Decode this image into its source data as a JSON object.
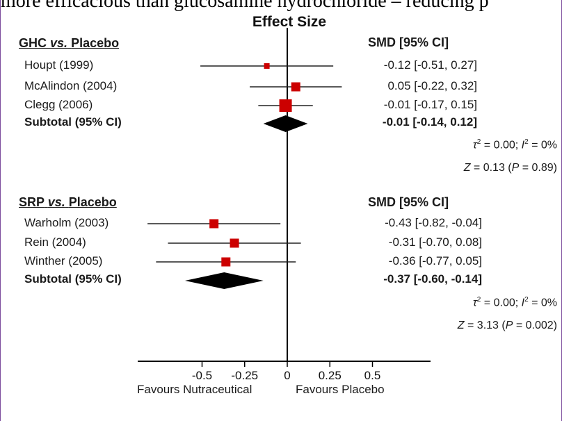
{
  "header_text": "more efficacious than glucosamine hydrochloride – reducing p",
  "chart_data": {
    "type": "forest",
    "title": "Effect Size",
    "x_range": [
      -1.0,
      0.8
    ],
    "ticks": [
      -0.5,
      -0.25,
      0,
      0.25,
      0.5
    ],
    "tick_labels": [
      "-0.5",
      "-0.25",
      "0",
      "0.25",
      "0.5"
    ],
    "favours_left": "Favours Nutraceutical",
    "favours_right": "Favours Placebo",
    "colors": {
      "marker": "#cc0000",
      "diamond": "#000000"
    },
    "groups": [
      {
        "title_prefix": "GHC",
        "title_vs": "vs.",
        "title_suffix": "Placebo",
        "column_header": "SMD [95% CI]",
        "studies": [
          {
            "name": "Houpt (1999)",
            "smd": -0.12,
            "lo": -0.51,
            "hi": 0.27,
            "text": "-0.12 [-0.51, 0.27]",
            "size": "small"
          },
          {
            "name": "McAlindon (2004)",
            "smd": 0.05,
            "lo": -0.22,
            "hi": 0.32,
            "text": "0.05 [-0.22, 0.32]",
            "size": "medium"
          },
          {
            "name": "Clegg (2006)",
            "smd": -0.01,
            "lo": -0.17,
            "hi": 0.15,
            "text": "-0.01 [-0.17, 0.15]",
            "size": "large"
          }
        ],
        "subtotal": {
          "label": "Subtotal (95% CI)",
          "smd": -0.01,
          "lo": -0.14,
          "hi": 0.12,
          "text": "-0.01 [-0.14, 0.12]"
        },
        "heterogeneity": {
          "tau": "τ",
          "tau_eq": " = 0.00; ",
          "i2": "I",
          "i2_eq": " = 0%"
        },
        "z_test": {
          "z": "Z",
          "z_eq": " = 0.13 (",
          "p": "P",
          "p_eq": " = 0.89)"
        }
      },
      {
        "title_prefix": "SRP",
        "title_vs": "vs.",
        "title_suffix": "Placebo",
        "column_header": "SMD [95% CI]",
        "studies": [
          {
            "name": "Warholm (2003)",
            "smd": -0.43,
            "lo": -0.82,
            "hi": -0.04,
            "text": "-0.43 [-0.82, -0.04]",
            "size": "medium"
          },
          {
            "name": "Rein (2004)",
            "smd": -0.31,
            "lo": -0.7,
            "hi": 0.08,
            "text": "-0.31 [-0.70, 0.08]",
            "size": "medium"
          },
          {
            "name": "Winther (2005)",
            "smd": -0.36,
            "lo": -0.77,
            "hi": 0.05,
            "text": "-0.36 [-0.77, 0.05]",
            "size": "medium"
          }
        ],
        "subtotal": {
          "label": "Subtotal (95% CI)",
          "smd": -0.37,
          "lo": -0.6,
          "hi": -0.14,
          "text": "-0.37 [-0.60, -0.14]"
        },
        "heterogeneity": {
          "tau": "τ",
          "tau_eq": " = 0.00; ",
          "i2": "I",
          "i2_eq": " = 0%"
        },
        "z_test": {
          "z": "Z",
          "z_eq": " = 3.13 (",
          "p": "P",
          "p_eq": " = 0.002)"
        }
      }
    ]
  }
}
